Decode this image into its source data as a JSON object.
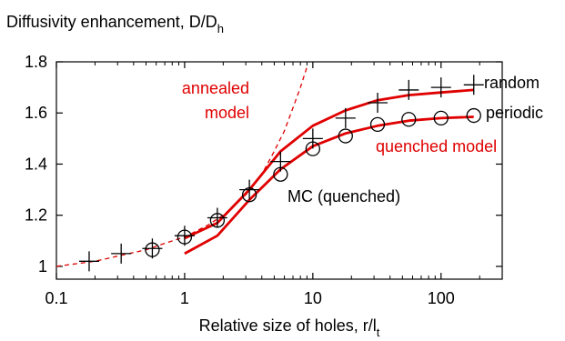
{
  "chart_data": {
    "type": "line",
    "title": "Diffusivity enhancement, D/D",
    "title_subscript": "h",
    "xlabel": "Relative size of holes, r/l",
    "xlabel_subscript": "t",
    "xscale": "log",
    "xlim": [
      0.1,
      300
    ],
    "ylim": [
      0.95,
      1.8
    ],
    "xticks": [
      0.1,
      1,
      10,
      100
    ],
    "xtick_labels": [
      "0.1",
      "1",
      "10",
      "100"
    ],
    "yticks": [
      1,
      1.2,
      1.4,
      1.6,
      1.8
    ],
    "ytick_labels": [
      "1",
      "1.2",
      "1.4",
      "1.6",
      "1.8"
    ],
    "grid": false,
    "colors": {
      "model": "#e00000",
      "mc": "#000000"
    },
    "annotations": {
      "annealed": [
        "annealed",
        "model"
      ],
      "quenched": "quenched model",
      "mc": "MC (quenched)",
      "random": "random",
      "periodic": "periodic"
    },
    "series": [
      {
        "name": "annealed model",
        "style": "dashed",
        "x": [
          0.1,
          0.2,
          0.3,
          0.5,
          0.7,
          1.0,
          1.5,
          2.0,
          3.0,
          4.0,
          5.0,
          6.0,
          7.0,
          8.0,
          9.0
        ],
        "y": [
          1.0,
          1.02,
          1.04,
          1.065,
          1.09,
          1.115,
          1.16,
          1.2,
          1.28,
          1.36,
          1.45,
          1.53,
          1.62,
          1.7,
          1.78
        ]
      },
      {
        "name": "quenched model (random)",
        "style": "solid",
        "x": [
          1.0,
          1.8,
          3.2,
          5.6,
          10,
          18,
          32,
          56,
          100,
          180
        ],
        "y": [
          1.11,
          1.17,
          1.3,
          1.45,
          1.55,
          1.61,
          1.65,
          1.67,
          1.68,
          1.69
        ]
      },
      {
        "name": "quenched model (periodic)",
        "style": "solid",
        "x": [
          1.0,
          1.8,
          3.2,
          5.6,
          10,
          18,
          32,
          56,
          100,
          180
        ],
        "y": [
          1.05,
          1.12,
          1.26,
          1.38,
          1.47,
          1.52,
          1.55,
          1.57,
          1.58,
          1.585
        ]
      },
      {
        "name": "random",
        "marker": "plus",
        "x": [
          0.18,
          0.32,
          0.56,
          1.0,
          1.8,
          3.2,
          5.6,
          10,
          18,
          32,
          56,
          100,
          180
        ],
        "y": [
          1.02,
          1.05,
          1.07,
          1.12,
          1.19,
          1.3,
          1.41,
          1.5,
          1.58,
          1.64,
          1.69,
          1.7,
          1.71
        ]
      },
      {
        "name": "periodic",
        "marker": "circle",
        "x": [
          0.56,
          1.0,
          1.8,
          3.2,
          5.6,
          10,
          18,
          32,
          56,
          100,
          180
        ],
        "y": [
          1.065,
          1.115,
          1.18,
          1.28,
          1.36,
          1.46,
          1.51,
          1.555,
          1.575,
          1.58,
          1.59
        ]
      }
    ]
  }
}
